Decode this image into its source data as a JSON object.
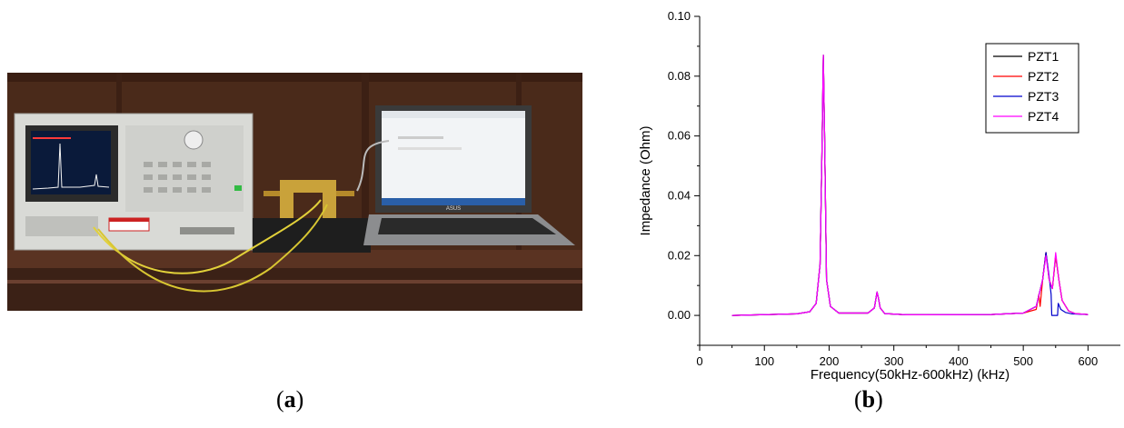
{
  "figure": {
    "panel_a_label": "a",
    "panel_b_label": "b"
  },
  "photo": {
    "laptop_brand": "ASUS"
  },
  "colors": {
    "PZT1": "#000000",
    "PZT2": "#ff0000",
    "PZT3": "#0000cc",
    "PZT4": "#ff00ff"
  },
  "chart_data": {
    "type": "line",
    "title": "",
    "xlabel": "Frequency(50kHz-600kHz) (kHz)",
    "ylabel": "Impedance (Ohm)",
    "xlim": [
      0,
      650
    ],
    "ylim": [
      -0.01,
      0.1
    ],
    "xticks": [
      0,
      100,
      200,
      300,
      400,
      500,
      600
    ],
    "yticks": [
      0.0,
      0.02,
      0.04,
      0.06,
      0.08,
      0.1
    ],
    "ytick_labels": [
      "0.00",
      "0.02",
      "0.04",
      "0.06",
      "0.08",
      "0.10"
    ],
    "grid": false,
    "legend_position": "top-right",
    "series": [
      {
        "name": "PZT1",
        "x": [
          50,
          150,
          170,
          180,
          186,
          189,
          191,
          193,
          196,
          202,
          215,
          260,
          270,
          274,
          276,
          279,
          286,
          320,
          450,
          500,
          520,
          530,
          535,
          540,
          545,
          550,
          555,
          560,
          570,
          580,
          600
        ],
        "y": [
          0.0,
          0.0005,
          0.0012,
          0.004,
          0.017,
          0.055,
          0.087,
          0.06,
          0.012,
          0.003,
          0.0008,
          0.0008,
          0.0025,
          0.0078,
          0.006,
          0.0025,
          0.0006,
          0.0002,
          0.0003,
          0.0008,
          0.003,
          0.012,
          0.021,
          0.012,
          0.009,
          0.02,
          0.012,
          0.005,
          0.0015,
          0.0006,
          0.0003
        ]
      },
      {
        "name": "PZT2",
        "x": [
          50,
          150,
          170,
          180,
          186,
          189,
          191,
          193,
          196,
          202,
          215,
          260,
          270,
          274,
          276,
          279,
          286,
          320,
          450,
          500,
          520,
          524,
          526,
          530,
          535,
          540,
          545,
          550,
          555,
          560,
          570,
          580,
          600
        ],
        "y": [
          0.0,
          0.0005,
          0.0012,
          0.004,
          0.017,
          0.055,
          0.087,
          0.06,
          0.012,
          0.003,
          0.0008,
          0.0008,
          0.0025,
          0.0078,
          0.006,
          0.0025,
          0.0006,
          0.0002,
          0.0003,
          0.0008,
          0.002,
          0.007,
          0.003,
          0.012,
          0.021,
          0.012,
          0.009,
          0.02,
          0.012,
          0.005,
          0.0015,
          0.0006,
          0.0003
        ]
      },
      {
        "name": "PZT3",
        "x": [
          50,
          150,
          170,
          180,
          186,
          189,
          191,
          193,
          196,
          202,
          215,
          260,
          270,
          274,
          276,
          279,
          286,
          320,
          450,
          500,
          520,
          530,
          535,
          540,
          543,
          544,
          553,
          554,
          558,
          565,
          575,
          600
        ],
        "y": [
          0.0,
          0.0005,
          0.0012,
          0.004,
          0.017,
          0.055,
          0.087,
          0.06,
          0.012,
          0.003,
          0.0008,
          0.0008,
          0.0025,
          0.0078,
          0.006,
          0.0025,
          0.0006,
          0.0002,
          0.0003,
          0.0008,
          0.003,
          0.012,
          0.021,
          0.013,
          0.007,
          0.0,
          0.0,
          0.004,
          0.002,
          0.001,
          0.0005,
          0.0003
        ]
      },
      {
        "name": "PZT4",
        "x": [
          50,
          150,
          170,
          180,
          186,
          189,
          191,
          193,
          196,
          202,
          215,
          260,
          270,
          274,
          276,
          279,
          286,
          320,
          450,
          500,
          520,
          530,
          535,
          540,
          545,
          550,
          555,
          560,
          570,
          580,
          600
        ],
        "y": [
          0.0,
          0.0005,
          0.0012,
          0.004,
          0.017,
          0.055,
          0.087,
          0.06,
          0.012,
          0.003,
          0.0008,
          0.0008,
          0.0025,
          0.0078,
          0.006,
          0.0025,
          0.0006,
          0.0002,
          0.0003,
          0.0008,
          0.003,
          0.012,
          0.02,
          0.012,
          0.009,
          0.021,
          0.012,
          0.005,
          0.0015,
          0.0006,
          0.0003
        ]
      }
    ]
  }
}
